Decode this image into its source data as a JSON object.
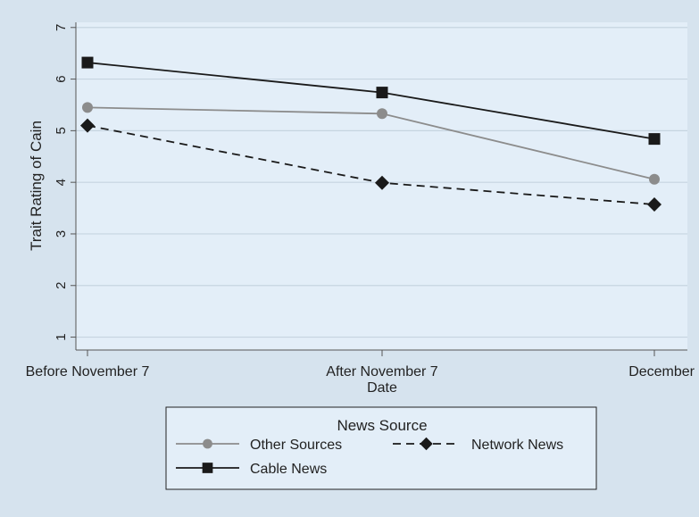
{
  "chart_data": {
    "type": "line",
    "title": "",
    "xlabel": "Date",
    "ylabel": "Trait Rating of Cain",
    "categories": [
      "Before November 7",
      "After November 7",
      "December"
    ],
    "yticks": [
      1,
      2,
      3,
      4,
      5,
      6,
      7
    ],
    "ylim": [
      0.75,
      7.1
    ],
    "grid": true,
    "legend": {
      "title": "News Source",
      "placement": "bottom"
    },
    "series": [
      {
        "name": "Other Sources",
        "values": [
          5.45,
          5.33,
          4.06
        ],
        "color": "#8c8c8c",
        "marker": "circle",
        "dash": "solid"
      },
      {
        "name": "Network News",
        "values": [
          5.1,
          3.99,
          3.57
        ],
        "color": "#1a1a1a",
        "marker": "diamond",
        "dash": "dashed"
      },
      {
        "name": "Cable News",
        "values": [
          6.32,
          5.74,
          4.84
        ],
        "color": "#1a1a1a",
        "marker": "square",
        "dash": "solid"
      }
    ],
    "colors": {
      "page_background": "#d6e3ee",
      "plot_background": "#e3eef8",
      "grid": "#c6d4e0",
      "axis": "#555555"
    }
  }
}
